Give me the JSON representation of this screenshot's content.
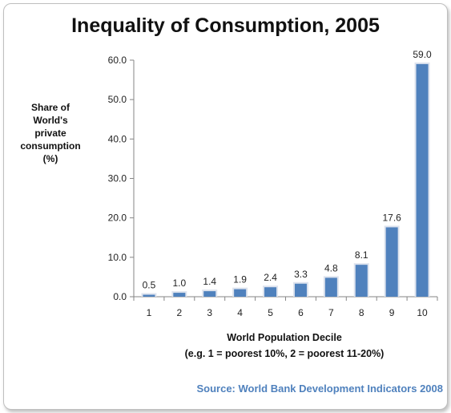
{
  "chart_data": {
    "type": "bar",
    "title": "Inequality of Consumption, 2005",
    "ylabel": "Share of\nWorld's\nprivate\nconsumption\n(%)",
    "xlabel": "World Population Decile",
    "xlabel_note": "(e.g. 1 = poorest 10%, 2 = poorest 11-20%)",
    "source": "Source: World Bank Development Indicators 2008",
    "categories": [
      "1",
      "2",
      "3",
      "4",
      "5",
      "6",
      "7",
      "8",
      "9",
      "10"
    ],
    "values": [
      0.5,
      1.0,
      1.4,
      1.9,
      2.4,
      3.3,
      4.8,
      8.1,
      17.6,
      59.0
    ],
    "value_labels": [
      "0.5",
      "1.0",
      "1.4",
      "1.9",
      "2.4",
      "3.3",
      "4.8",
      "8.1",
      "17.6",
      "59.0"
    ],
    "yticks": [
      "0.0",
      "10.0",
      "20.0",
      "30.0",
      "40.0",
      "50.0",
      "60.0"
    ],
    "ylim": [
      0,
      60
    ],
    "grid": false,
    "bar_color": "#4f81bd"
  }
}
